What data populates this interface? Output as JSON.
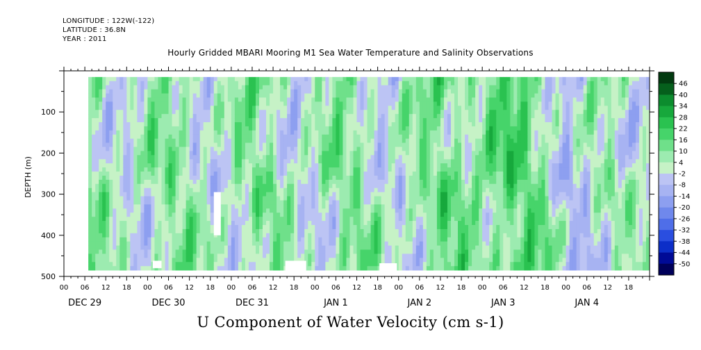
{
  "header": {
    "longitude": "LONGITUDE : 122W(-122)",
    "latitude": "LATITUDE : 36.8N",
    "year": "YEAR : 2011"
  },
  "chart_data": {
    "type": "heatmap",
    "title": "Hourly Gridded MBARI Mooring M1 Sea Water Temperature and Salinity Observations",
    "bottom_title": "U Component of Water Velocity (cm s-1)",
    "ylabel": "DEPTH (m)",
    "ylim": [
      500,
      0
    ],
    "y_ticks": [
      100,
      200,
      300,
      400,
      500
    ],
    "y_tick_labels": [
      "100",
      "200",
      "300",
      "400",
      "500"
    ],
    "data_depth_range": [
      15,
      485
    ],
    "x_hour_labels": [
      "00",
      "06",
      "12",
      "18",
      "00",
      "06",
      "12",
      "18",
      "00",
      "06",
      "12",
      "18",
      "00",
      "06",
      "12",
      "18",
      "00",
      "06",
      "12",
      "18",
      "00",
      "06",
      "12",
      "18",
      "00",
      "06",
      "12",
      "18"
    ],
    "x_day_labels": [
      "DEC 29",
      "DEC 30",
      "DEC 31",
      "JAN  1",
      "JAN  2",
      "JAN  3",
      "JAN  4"
    ],
    "x_range_hours": [
      0,
      168
    ],
    "data_start_hour": 7,
    "colorbar": {
      "levels": [
        -50,
        -44,
        -38,
        -32,
        -26,
        -20,
        -14,
        -8,
        -2,
        4,
        10,
        16,
        22,
        28,
        34,
        40,
        46
      ],
      "labels": [
        "46",
        "40",
        "34",
        "28",
        "22",
        "16",
        "10",
        "4",
        "-2",
        "-8",
        "-14",
        "-20",
        "-26",
        "-32",
        "-38",
        "-44",
        "-50"
      ],
      "colors": [
        "#00005a",
        "#000a96",
        "#0c2ec8",
        "#2a4ee0",
        "#4f6ee8",
        "#6f88ec",
        "#8d9ff0",
        "#a7b3f2",
        "#bcc4f4",
        "#c6f2c6",
        "#9cebb0",
        "#6fe08a",
        "#46d46a",
        "#2ac250",
        "#17a83c",
        "#0c8c2e",
        "#055f1c",
        "#023a10"
      ]
    },
    "missing_regions": [
      {
        "hour_start": 25.5,
        "hour_end": 28.0,
        "depth_start": 462,
        "depth_end": 480
      },
      {
        "hour_start": 43.0,
        "hour_end": 45.0,
        "depth_start": 295,
        "depth_end": 400
      },
      {
        "hour_start": 63.5,
        "hour_end": 69.5,
        "depth_start": 462,
        "depth_end": 490
      },
      {
        "hour_start": 90.5,
        "hour_end": 95.5,
        "depth_start": 468,
        "depth_end": 490
      }
    ]
  }
}
